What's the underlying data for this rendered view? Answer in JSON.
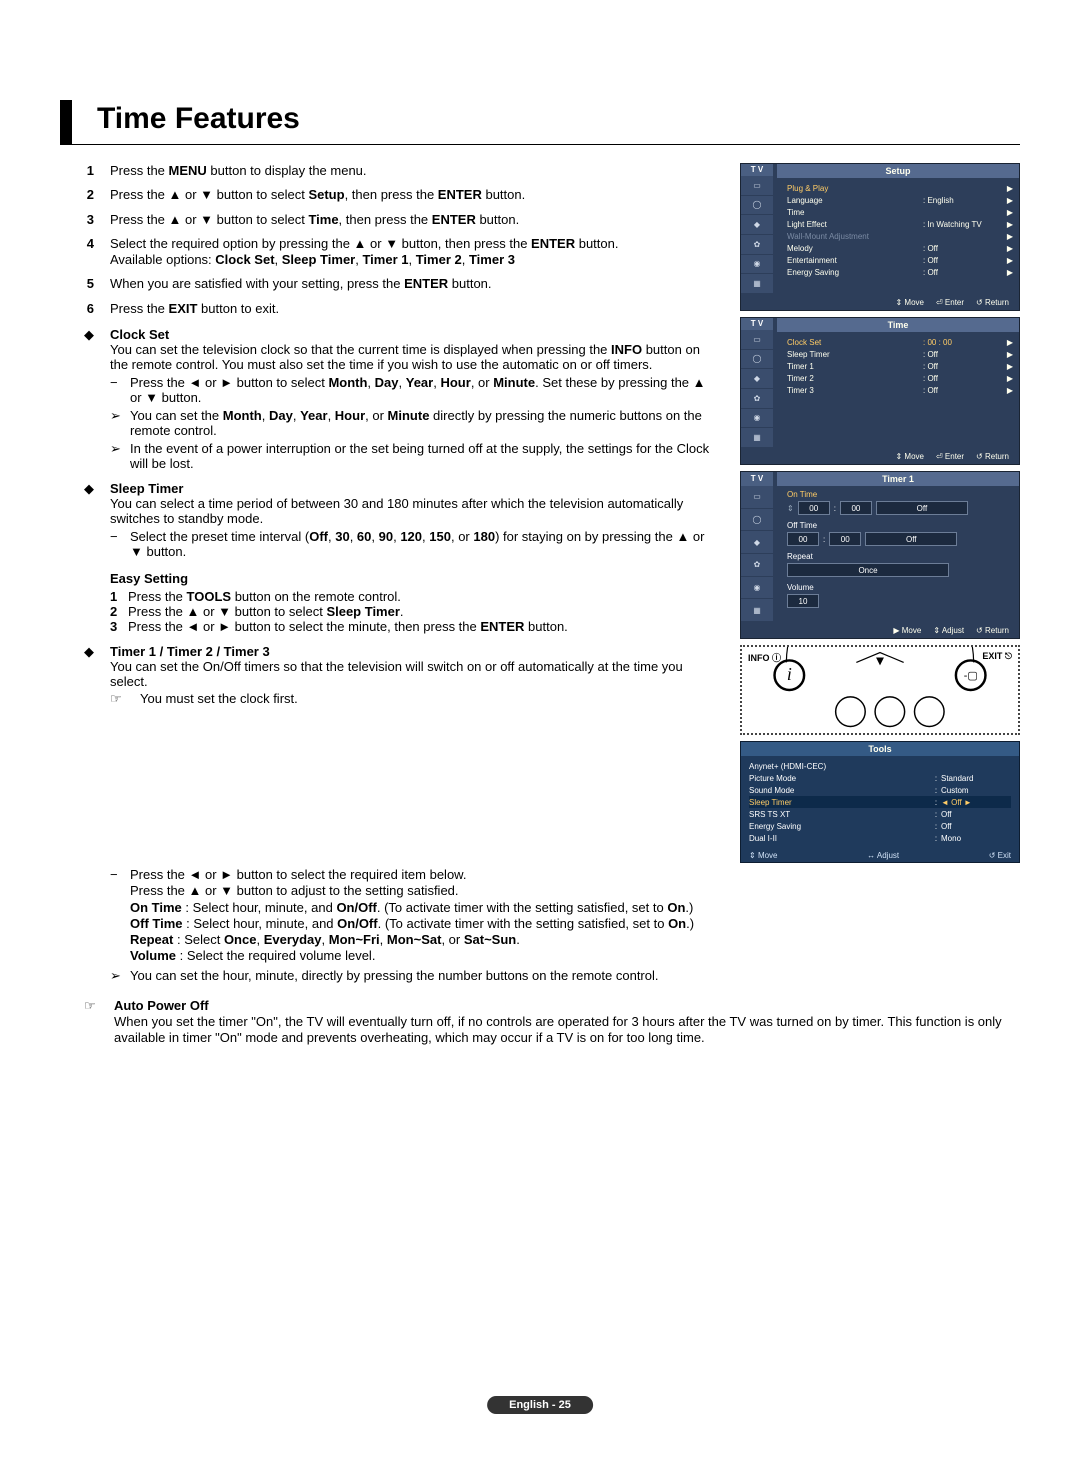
{
  "heading": "Time Features",
  "footer": "English - 25",
  "steps": {
    "s1_a": "Press the ",
    "s1_b": "MENU",
    "s1_c": " button to display the menu.",
    "s2_a": "Press the ▲ or ▼ button to select ",
    "s2_b": "Setup",
    "s2_c": ", then press the ",
    "s2_d": "ENTER",
    "s2_e": " button.",
    "s3_a": "Press the ▲ or ▼ button to select ",
    "s3_b": "Time",
    "s3_c": ", then press the ",
    "s3_d": "ENTER",
    "s3_e": " button.",
    "s4_a": "Select the required option by pressing the ▲ or ▼ button, then press the ",
    "s4_b": "ENTER",
    "s4_c": " button.",
    "s4_d": "Available options: ",
    "s4_e": "Clock Set",
    "s4_f": ", ",
    "s4_g": "Sleep Timer",
    "s4_h": ", ",
    "s4_i": "Timer 1",
    "s4_j": ", ",
    "s4_k": "Timer 2",
    "s4_l": ", ",
    "s4_m": "Timer 3",
    "s5_a": "When you are satisfied with your setting, press the ",
    "s5_b": "ENTER",
    "s5_c": " button.",
    "s6_a": "Press the ",
    "s6_b": "EXIT",
    "s6_c": " button to exit."
  },
  "clockset": {
    "title": "Clock Set",
    "intro": "You can set the television clock so that the current time is displayed when pressing the ",
    "info": "INFO",
    "intro2": " button on the remote control. You must also set the time if you wish to use the automatic on or off timers.",
    "d1a": "Press the ◄ or ► button to select ",
    "d1b": "Month",
    "d1c": ", ",
    "d1d": "Day",
    "d1e": ", ",
    "d1f": "Year",
    "d1g": ", ",
    "d1h": "Hour",
    "d1i": ", or ",
    "d1j": "Minute",
    "d1k": ". Set these by pressing the ▲ or ▼ button.",
    "t1a": "You can set the ",
    "t1b": "Month",
    "t1c": ", ",
    "t1d": "Day",
    "t1e": ", ",
    "t1f": "Year",
    "t1g": ", ",
    "t1h": "Hour",
    "t1i": ", or ",
    "t1j": "Minute",
    "t1k": " directly by pressing the numeric buttons on the remote control.",
    "t2": "In the event of a power interruption or the set being turned off at the supply, the settings for the Clock will be lost."
  },
  "sleep": {
    "title": "Sleep Timer",
    "intro": "You can select a time period of between 30 and 180 minutes after which the television automatically switches to standby mode.",
    "d1a": "Select the preset time interval (",
    "d1b": "Off",
    "d1c": ", ",
    "d1d": "30",
    "d1e": ", ",
    "d1f": "60",
    "d1g": ", ",
    "d1h": "90",
    "d1i": ", ",
    "d1j": "120",
    "d1k": ", ",
    "d1l": "150",
    "d1m": ", or ",
    "d1n": "180",
    "d1o": ") for staying on by pressing the ▲ or ▼ button."
  },
  "easy": {
    "title": "Easy Setting",
    "l1a": "Press the ",
    "l1b": "TOOLS",
    "l1c": " button on the remote control.",
    "l2a": "Press the ▲ or ▼ button to select ",
    "l2b": "Sleep Timer",
    "l2c": ".",
    "l3a": "Press the ◄ or ► button to select the minute, then press the ",
    "l3b": "ENTER",
    "l3c": " button."
  },
  "timer123": {
    "title": "Timer 1 / Timer 2 / Timer 3",
    "intro": "You can set the On/Off timers so that the television will switch on or off automatically at the time you select.",
    "hand1": "You must set the clock first.",
    "d1": "Press the ◄ or ► button to select the required item below.",
    "d1b": "Press the ▲ or ▼ button to adjust to the setting satisfied.",
    "ontime_a": "On Time",
    "ontime_b": " : Select hour, minute, and ",
    "ontime_c": "On/Off",
    "ontime_d": ". (To activate timer with the setting satisfied, set to ",
    "ontime_e": "On",
    "ontime_f": ".)",
    "offtime_a": "Off Time",
    "offtime_b": " : Select hour, minute, and ",
    "offtime_c": "On/Off",
    "offtime_d": ". (To activate timer with the setting satisfied, set to ",
    "offtime_e": "On",
    "offtime_f": ".)",
    "repeat_a": "Repeat",
    "repeat_b": " : Select ",
    "repeat_c": "Once",
    "repeat_d": ", ",
    "repeat_e": "Everyday",
    "repeat_f": ", ",
    "repeat_g": "Mon~Fri",
    "repeat_h": ", ",
    "repeat_i": "Mon~Sat",
    "repeat_j": ", or ",
    "repeat_k": "Sat~Sun",
    "repeat_l": ".",
    "volume_a": "Volume",
    "volume_b": " : Select the required volume level.",
    "t1": "You can set the hour, minute, directly by pressing the number buttons on the remote control."
  },
  "auto": {
    "title": "Auto Power Off",
    "body": "When you set the timer \"On\", the TV will eventually turn off, if no controls are operated for 3 hours after the TV was turned on by timer. This function is only available in timer \"On\" mode and prevents overheating, which may occur if a TV is on for too long time."
  },
  "osd_setup": {
    "title": "Setup",
    "tv": "T V",
    "rows": [
      {
        "lab": "Plug & Play",
        "val": "",
        "sel": true
      },
      {
        "lab": "Language",
        "val": ": English"
      },
      {
        "lab": "Time",
        "val": ""
      },
      {
        "lab": "Light Effect",
        "val": ": In Watching TV"
      },
      {
        "lab": "Wall-Mount Adjustment",
        "val": "",
        "dim": true
      },
      {
        "lab": "Melody",
        "val": ": Off"
      },
      {
        "lab": "Entertainment",
        "val": ": Off"
      },
      {
        "lab": "Energy Saving",
        "val": ": Off"
      }
    ],
    "ftr": [
      "Move",
      "Enter",
      "Return"
    ]
  },
  "osd_time": {
    "title": "Time",
    "rows": [
      {
        "lab": "Clock Set",
        "val": ": 00 : 00",
        "sel": true
      },
      {
        "lab": "Sleep Timer",
        "val": ": Off"
      },
      {
        "lab": "Timer 1",
        "val": ": Off"
      },
      {
        "lab": "Timer 2",
        "val": ": Off"
      },
      {
        "lab": "Timer 3",
        "val": ": Off"
      }
    ],
    "ftr": [
      "Move",
      "Enter",
      "Return"
    ]
  },
  "osd_timer1": {
    "title": "Timer 1",
    "ontime": "On Time",
    "offtime": "Off Time",
    "repeat": "Repeat",
    "volume": "Volume",
    "hh": "00",
    "mm": "00",
    "off": "Off",
    "once": "Once",
    "vol": "10",
    "ftr": [
      "Move",
      "Adjust",
      "Return"
    ]
  },
  "remote": {
    "info": "INFO",
    "exit": "EXIT"
  },
  "tools": {
    "title": "Tools",
    "rows": [
      {
        "lab": "Anynet+ (HDMI-CEC)",
        "val": ""
      },
      {
        "lab": "Picture Mode",
        "val": "Standard"
      },
      {
        "lab": "Sound Mode",
        "val": "Custom"
      },
      {
        "lab": "Sleep Timer",
        "val": "Off",
        "sel": true
      },
      {
        "lab": "SRS TS XT",
        "val": "Off"
      },
      {
        "lab": "Energy Saving",
        "val": "Off"
      },
      {
        "lab": "Dual I-II",
        "val": "Mono"
      }
    ],
    "ftr": [
      "Move",
      "Adjust",
      "Exit"
    ]
  },
  "sym": {
    "diamond": "◆",
    "dash": "−",
    "tri": "➢",
    "hand": "☞",
    "updown": "⇕",
    "leftright": "↔",
    "enter": "⏎",
    "ret": "↺",
    "arrow_r": "▶"
  }
}
